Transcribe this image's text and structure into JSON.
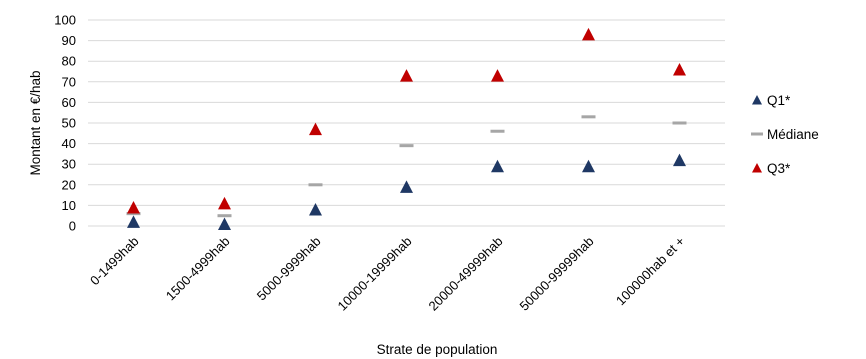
{
  "chart_data": {
    "type": "scatter",
    "title": "",
    "xlabel": "Strate de population",
    "ylabel": "Montant en €/hab",
    "ylim": [
      0,
      100
    ],
    "yticks": [
      0,
      10,
      20,
      30,
      40,
      50,
      60,
      70,
      80,
      90,
      100
    ],
    "grid": true,
    "legend_position": "right",
    "categories": [
      "0-1499hab",
      "1500-4999hab",
      "5000-9999hab",
      "10000-19999hab",
      "20000-49999hab",
      "50000-99999hab",
      "100000hab et +"
    ],
    "series": [
      {
        "name": "Q1*",
        "marker": "triangle",
        "color": "#1f3864",
        "values": [
          2,
          1,
          8,
          19,
          29,
          29,
          32
        ]
      },
      {
        "name": "Médiane",
        "marker": "dash",
        "color": "#a6a6a6",
        "values": [
          6,
          5,
          20,
          39,
          46,
          53,
          50
        ]
      },
      {
        "name": "Q3*",
        "marker": "triangle",
        "color": "#c00000",
        "values": [
          9,
          11,
          47,
          73,
          73,
          93,
          76
        ]
      }
    ]
  }
}
